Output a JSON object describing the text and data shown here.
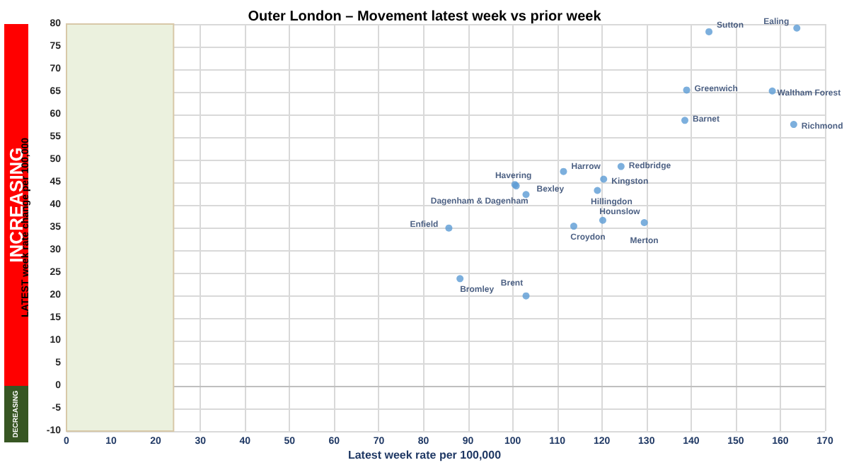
{
  "chart_data": {
    "type": "scatter",
    "title": "Outer London – Movement latest week vs prior week",
    "xlabel": "Latest week rate per 100,000",
    "ylabel": "LATEST week rate change per 100,000",
    "annotations": [
      "INCREASING",
      "DECREASING"
    ],
    "series": [
      {
        "color": "#5b9bd5",
        "x": [
          144,
          163.7,
          139,
          158.2,
          138.6,
          163,
          111.4,
          124.3,
          100.8,
          100.5,
          103,
          120.4,
          119,
          120.2,
          129.5,
          113.7,
          85.7,
          88.2,
          103
        ],
        "values": [
          78.3,
          79.1,
          65.4,
          65.2,
          58.7,
          57.8,
          47.4,
          48.5,
          44.2,
          44.5,
          42.3,
          45.7,
          43.2,
          36.6,
          36.1,
          35.3,
          34.9,
          23.7,
          19.9
        ],
        "value_labels": [
          "Sutton",
          "Ealing",
          "Greenwich",
          "Waltham Forest",
          "Barnet",
          "Richmond",
          "Harrow",
          "Redbridge",
          "Havering",
          "Dagenham & Dagenham",
          "Bexley",
          "Kingston",
          "Hillingdon",
          "Hounslow",
          "Merton",
          "Croydon",
          "Enfield",
          "Bromley",
          "Brent"
        ]
      }
    ],
    "bands": [
      {
        "axis": "x",
        "from": 0,
        "to": 24,
        "color": "#ebf1de"
      }
    ],
    "xlim": [
      0,
      170
    ],
    "xticks": [
      0,
      10,
      20,
      30,
      40,
      50,
      60,
      70,
      80,
      90,
      100,
      110,
      120,
      130,
      140,
      150,
      160,
      170
    ],
    "ylim": [
      -10,
      80
    ],
    "yticks": [
      -10,
      -5,
      0,
      5,
      10,
      15,
      20,
      25,
      30,
      35,
      40,
      45,
      50,
      55,
      60,
      65,
      70,
      75,
      80
    ],
    "grid": true,
    "marker": "circle"
  }
}
